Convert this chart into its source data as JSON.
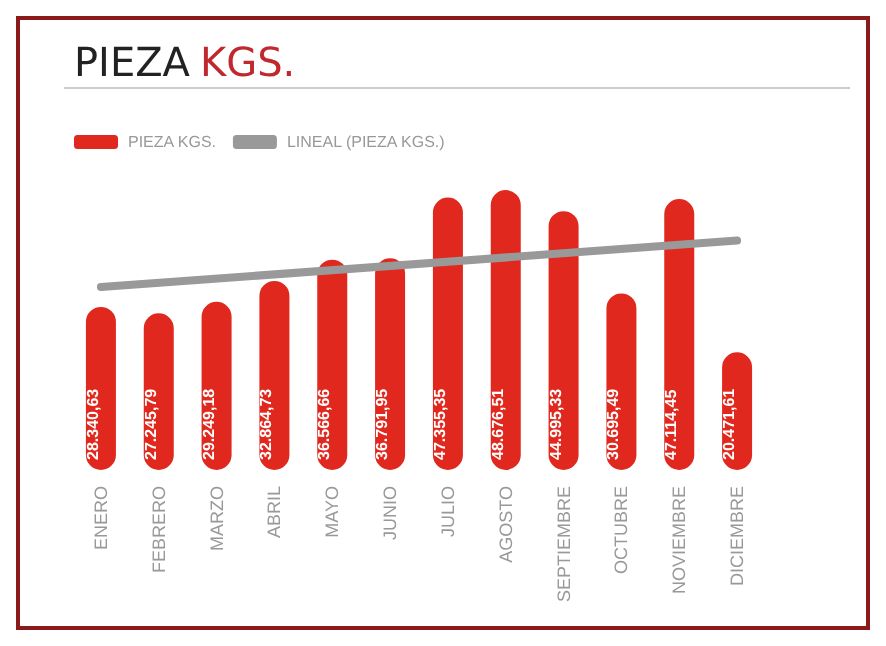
{
  "chart_data": {
    "type": "bar",
    "title": "PIEZA KGS.",
    "categories": [
      "ENERO",
      "FEBRERO",
      "MARZO",
      "ABRIL",
      "MAYO",
      "JUNIO",
      "JULIO",
      "AGOSTO",
      "SEPTIEMBRE",
      "OCTUBRE",
      "NOVIEMBRE",
      "DICIEMBRE"
    ],
    "series": [
      {
        "name": "PIEZA KGS.",
        "color": "#e0281e",
        "values": [
          28340.63,
          27245.79,
          29249.18,
          32864.73,
          36566.66,
          36791.95,
          47355.35,
          48676.51,
          44995.33,
          30695.49,
          47114.45,
          20471.61
        ],
        "value_labels": [
          "28.340,63",
          "27.245,79",
          "29.249,18",
          "32.864,73",
          "36.566,66",
          "36.791,95",
          "47.355,35",
          "48.676,51",
          "44.995,33",
          "30.695,49",
          "47.114,45",
          "20.471,61"
        ]
      },
      {
        "name": "LINEAL (PIEZA KGS.)",
        "type": "line",
        "color": "#999999",
        "x": [
          "ENERO",
          "DICIEMBRE"
        ],
        "values": [
          31800,
          39900
        ]
      }
    ],
    "legend": "top left",
    "grid": false,
    "marker": "none"
  }
}
